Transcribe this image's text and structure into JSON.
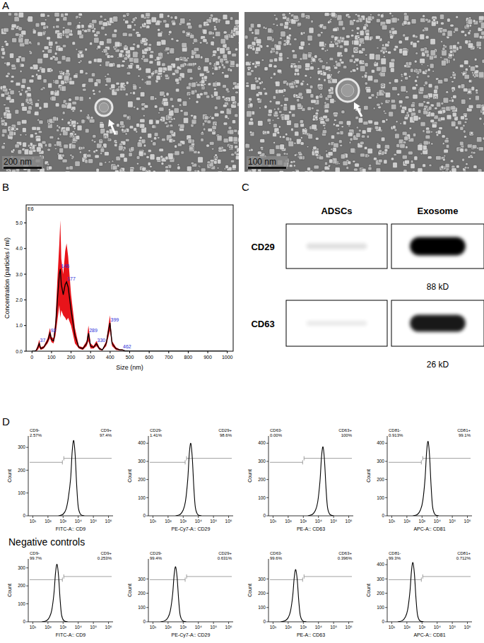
{
  "figure": {
    "panel_labels": [
      "A",
      "B",
      "C",
      "D"
    ],
    "images": [
      {
        "scale_bar": "200 nm"
      },
      {
        "scale_bar": "100 nm"
      }
    ],
    "blot": {
      "columns": [
        "ADSCs",
        "Exosome"
      ],
      "rows": [
        {
          "label": "CD29",
          "mw": "88 kD",
          "intensity": [
            0.12,
            1.0
          ]
        },
        {
          "label": "CD63",
          "mw": "26 kD",
          "intensity": [
            0.08,
            0.9
          ]
        }
      ]
    },
    "negative_controls_label": "Negative controls"
  },
  "chart_data": [
    {
      "type": "line",
      "ylabel": "Concentration (particles / ml)",
      "xlabel": "Size (nm)",
      "y_unit": "E6",
      "x": [
        0,
        10,
        20,
        30,
        37,
        45,
        60,
        80,
        92,
        100,
        110,
        120,
        130,
        140,
        145,
        150,
        160,
        170,
        177,
        185,
        200,
        220,
        240,
        260,
        280,
        289,
        300,
        315,
        330,
        345,
        360,
        380,
        399,
        410,
        430,
        450,
        462,
        475,
        500,
        600,
        700,
        800,
        900,
        1000
      ],
      "series": [
        {
          "color": "#000000",
          "values": [
            0,
            0,
            0.02,
            0.15,
            0.3,
            0.1,
            0.15,
            0.4,
            0.7,
            0.45,
            0.4,
            0.9,
            2.0,
            3.0,
            3.2,
            2.6,
            2.2,
            2.6,
            2.7,
            2.5,
            1.6,
            0.6,
            0.15,
            0.1,
            0.3,
            0.7,
            0.2,
            0.15,
            0.3,
            0.1,
            0.05,
            0.3,
            1.1,
            0.3,
            0.1,
            0.05,
            0.05,
            0.02,
            0,
            0,
            0,
            0,
            0,
            0
          ],
          "error": [
            0,
            0,
            0.02,
            0.1,
            0.15,
            0.05,
            0.05,
            0.1,
            0.2,
            0.1,
            0.1,
            0.3,
            0.8,
            1.2,
            1.9,
            1.0,
            0.8,
            1.3,
            1.5,
            1.2,
            0.6,
            0.3,
            0.05,
            0.05,
            0.1,
            0.3,
            0.1,
            0.05,
            0.1,
            0.05,
            0.02,
            0.1,
            0.3,
            0.1,
            0.05,
            0.02,
            0.02,
            0.01,
            0,
            0,
            0,
            0,
            0,
            0
          ]
        }
      ],
      "peaks": {
        "x": [
          37,
          92,
          145,
          177,
          289,
          330,
          399,
          462
        ],
        "y": [
          0.3,
          0.7,
          3.2,
          2.7,
          0.7,
          0.3,
          1.1,
          0.05
        ]
      },
      "xlim": [
        -30,
        1030
      ],
      "ylim": [
        0,
        5.7
      ],
      "xticks": [
        0,
        100,
        200,
        300,
        400,
        500,
        600,
        700,
        800,
        900,
        1000
      ],
      "yticks": [
        {
          "value": 0,
          "label": "0.0"
        },
        {
          "value": 1,
          "label": "1.0"
        },
        {
          "value": 2,
          "label": "2.0"
        },
        {
          "value": 3,
          "label": "3.0"
        },
        {
          "value": 4,
          "label": "4.0"
        },
        {
          "value": 5,
          "label": "5.0"
        }
      ],
      "grid": false
    },
    {
      "type": "line",
      "log": "x",
      "x": [
        501,
        1000,
        1585,
        2239,
        3162,
        3981,
        5012,
        6310,
        7943,
        10000,
        14125,
        25119
      ],
      "series": [
        {
          "color": "#000000",
          "values": [
            0,
            7,
            30,
            80,
            165,
            281,
            330,
            264,
            132,
            40,
            7,
            0
          ]
        }
      ],
      "xlim": [
        5,
        2000000
      ],
      "ylim": [
        0,
        350
      ],
      "xticks": [
        {
          "value": 10,
          "label": "10¹"
        },
        {
          "value": 100,
          "label": "10²"
        },
        {
          "value": 1000,
          "label": "10³"
        },
        {
          "value": 10000,
          "label": "10⁴"
        },
        {
          "value": 100000,
          "label": "10⁵"
        },
        {
          "value": 1000000,
          "label": "10⁶"
        }
      ],
      "yticks": [
        0,
        100,
        200,
        300
      ],
      "xlabel": "FITC-A:: CD9",
      "ylabel": "Count",
      "gate": 1000,
      "gate_labels": {
        "negative": [
          "CD9-",
          "2.57%"
        ],
        "positive": [
          "CD9+",
          "97.4%"
        ]
      }
    },
    {
      "type": "line",
      "log": "x",
      "x": [
        316,
        631,
        1000,
        1413,
        1995,
        2512,
        3162,
        3981,
        5012,
        6310,
        8913,
        15849
      ],
      "series": [
        {
          "color": "#000000",
          "values": [
            0,
            8,
            32,
            80,
            200,
            340,
            400,
            320,
            160,
            48,
            8,
            0
          ]
        }
      ],
      "xlim": [
        5,
        2000000
      ],
      "ylim": [
        0,
        440
      ],
      "xticks": [
        {
          "value": 10,
          "label": "10¹"
        },
        {
          "value": 100,
          "label": "10²"
        },
        {
          "value": 1000,
          "label": "10³"
        },
        {
          "value": 10000,
          "label": "10⁴"
        },
        {
          "value": 100000,
          "label": "10⁵"
        },
        {
          "value": 1000000,
          "label": "10⁶"
        }
      ],
      "yticks": [
        0,
        100,
        200,
        300,
        400
      ],
      "xlabel": "PE-Cy7-A:: CD29",
      "ylabel": "Count",
      "gate": 1500,
      "gate_labels": {
        "negative": [
          "CD29-",
          "1.41%"
        ],
        "positive": [
          "CD29+",
          "98.6%"
        ]
      }
    },
    {
      "type": "line",
      "log": "x",
      "x": [
        1995,
        3981,
        6310,
        8913,
        12589,
        15849,
        19953,
        25119,
        31623,
        39811,
        56234,
        100000
      ],
      "series": [
        {
          "color": "#000000",
          "values": [
            0,
            8,
            30,
            76,
            190,
            323,
            380,
            304,
            152,
            46,
            8,
            0
          ]
        }
      ],
      "xlim": [
        5,
        2000000
      ],
      "ylim": [
        0,
        440
      ],
      "xticks": [
        {
          "value": 10,
          "label": "10¹"
        },
        {
          "value": 100,
          "label": "10²"
        },
        {
          "value": 1000,
          "label": "10³"
        },
        {
          "value": 10000,
          "label": "10⁴"
        },
        {
          "value": 100000,
          "label": "10⁵"
        },
        {
          "value": 1000000,
          "label": "10⁶"
        }
      ],
      "yticks": [
        0,
        100,
        200,
        300,
        400
      ],
      "xlabel": "PE-A:: CD63",
      "ylabel": "Count",
      "gate": 1000,
      "gate_labels": {
        "negative": [
          "CD63-",
          "0.00%"
        ],
        "positive": [
          "CD63+",
          "100%"
        ]
      }
    },
    {
      "type": "line",
      "log": "x",
      "x": [
        251,
        501,
        794,
        1122,
        1585,
        1995,
        2512,
        3162,
        3981,
        5012,
        7079,
        12589
      ],
      "series": [
        {
          "color": "#000000",
          "values": [
            0,
            8,
            33,
            82,
            205,
            349,
            410,
            328,
            164,
            49,
            8,
            0
          ]
        }
      ],
      "xlim": [
        5,
        2000000
      ],
      "ylim": [
        0,
        440
      ],
      "xticks": [
        {
          "value": 10,
          "label": "10¹"
        },
        {
          "value": 100,
          "label": "10²"
        },
        {
          "value": 1000,
          "label": "10³"
        },
        {
          "value": 10000,
          "label": "10⁴"
        },
        {
          "value": 100000,
          "label": "10⁵"
        },
        {
          "value": 1000000,
          "label": "10⁶"
        }
      ],
      "yticks": [
        0,
        100,
        200,
        300,
        400
      ],
      "xlabel": "APC-A:: CD81",
      "ylabel": "Count",
      "gate": 1000,
      "gate_labels": {
        "negative": [
          "CD81-",
          "0.913%"
        ],
        "positive": [
          "CD81+",
          "99.1%"
        ]
      }
    },
    {
      "type": "line",
      "log": "x",
      "x": [
        40,
        79,
        126,
        178,
        251,
        316,
        398,
        501,
        631,
        794,
        1122,
        1995
      ],
      "series": [
        {
          "color": "#000000",
          "values": [
            0,
            6,
            26,
            64,
            160,
            272,
            320,
            256,
            128,
            38,
            6,
            0
          ]
        }
      ],
      "xlim": [
        5,
        2000000
      ],
      "ylim": [
        0,
        350
      ],
      "xticks": [
        {
          "value": 10,
          "label": "10¹"
        },
        {
          "value": 100,
          "label": "10²"
        },
        {
          "value": 1000,
          "label": "10³"
        },
        {
          "value": 10000,
          "label": "10⁴"
        },
        {
          "value": 100000,
          "label": "10⁵"
        },
        {
          "value": 1000000,
          "label": "10⁶"
        }
      ],
      "yticks": [
        0,
        100,
        200,
        300
      ],
      "xlabel": "FITC-A:: CD9",
      "ylabel": "Count",
      "gate": 1000,
      "gate_labels": {
        "negative": [
          "CD9-",
          "99.7%"
        ],
        "positive": [
          "CD9+",
          "0.253%"
        ]
      }
    },
    {
      "type": "line",
      "log": "x",
      "x": [
        32,
        63,
        100,
        141,
        200,
        251,
        316,
        398,
        501,
        631,
        891,
        1585
      ],
      "series": [
        {
          "color": "#000000",
          "values": [
            0,
            8,
            31,
            77,
            193,
            327,
            385,
            308,
            154,
            46,
            8,
            0
          ]
        }
      ],
      "xlim": [
        5,
        2000000
      ],
      "ylim": [
        0,
        440
      ],
      "xticks": [
        {
          "value": 10,
          "label": "10¹"
        },
        {
          "value": 100,
          "label": "10²"
        },
        {
          "value": 1000,
          "label": "10³"
        },
        {
          "value": 10000,
          "label": "10⁴"
        },
        {
          "value": 100000,
          "label": "10⁵"
        },
        {
          "value": 1000000,
          "label": "10⁶"
        }
      ],
      "yticks": [
        0,
        100,
        200,
        300
      ],
      "xlabel": "PE-Cy7-A:: CD29",
      "ylabel": "Count",
      "gate": 1500,
      "gate_labels": {
        "negative": [
          "CD29-",
          "99.4%"
        ],
        "positive": [
          "CD29+",
          "0.631%"
        ]
      }
    },
    {
      "type": "line",
      "log": "x",
      "x": [
        32,
        63,
        100,
        141,
        200,
        251,
        316,
        398,
        501,
        631,
        891,
        1585
      ],
      "series": [
        {
          "color": "#000000",
          "values": [
            0,
            7,
            29,
            73,
            183,
            310,
            365,
            292,
            146,
            44,
            7,
            0
          ]
        }
      ],
      "xlim": [
        5,
        2000000
      ],
      "ylim": [
        0,
        440
      ],
      "xticks": [
        {
          "value": 10,
          "label": "10¹"
        },
        {
          "value": 100,
          "label": "10²"
        },
        {
          "value": 1000,
          "label": "10³"
        },
        {
          "value": 10000,
          "label": "10⁴"
        },
        {
          "value": 100000,
          "label": "10⁵"
        },
        {
          "value": 1000000,
          "label": "10⁶"
        }
      ],
      "yticks": [
        0,
        100,
        200,
        300
      ],
      "xlabel": "PE-A:: CD63",
      "ylabel": "Count",
      "gate": 1000,
      "gate_labels": {
        "negative": [
          "CD63-",
          "99.6%"
        ],
        "positive": [
          "CD63+",
          "0.396%"
        ]
      }
    },
    {
      "type": "line",
      "log": "x",
      "x": [
        25,
        50,
        79,
        112,
        158,
        200,
        251,
        316,
        398,
        501,
        708,
        1259
      ],
      "series": [
        {
          "color": "#000000",
          "values": [
            0,
            8,
            33,
            83,
            208,
            353,
            415,
            332,
            166,
            50,
            8,
            0
          ]
        }
      ],
      "xlim": [
        5,
        2000000
      ],
      "ylim": [
        0,
        440
      ],
      "xticks": [
        {
          "value": 10,
          "label": "10¹"
        },
        {
          "value": 100,
          "label": "10²"
        },
        {
          "value": 1000,
          "label": "10³"
        },
        {
          "value": 10000,
          "label": "10⁴"
        },
        {
          "value": 100000,
          "label": "10⁵"
        },
        {
          "value": 1000000,
          "label": "10⁶"
        }
      ],
      "yticks": [
        0,
        100,
        200,
        300,
        400
      ],
      "xlabel": "APC-A:: CD81",
      "ylabel": "Count",
      "gate": 1000,
      "gate_labels": {
        "negative": [
          "CD81-",
          "99.3%"
        ],
        "positive": [
          "CD81+",
          "0.712%"
        ]
      }
    }
  ]
}
